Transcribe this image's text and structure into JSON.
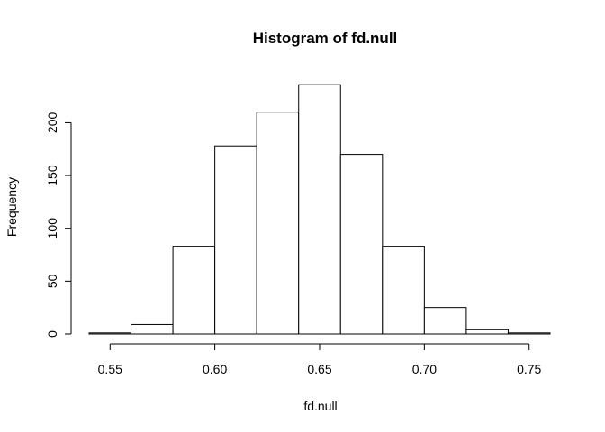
{
  "chart_data": {
    "type": "bar",
    "title": "Histogram of fd.null",
    "xlabel": "fd.null",
    "ylabel": "Frequency",
    "bin_edges": [
      0.54,
      0.56,
      0.58,
      0.6,
      0.62,
      0.64,
      0.66,
      0.68,
      0.7,
      0.72,
      0.74,
      0.76
    ],
    "values": [
      1,
      9,
      83,
      178,
      210,
      236,
      170,
      83,
      25,
      4,
      1
    ],
    "xticks": [
      0.55,
      0.6,
      0.65,
      0.7,
      0.75
    ],
    "xtick_labels": [
      "0.55",
      "0.60",
      "0.65",
      "0.70",
      "0.75"
    ],
    "yticks": [
      0,
      50,
      100,
      150,
      200
    ],
    "ytick_labels": [
      "0",
      "50",
      "100",
      "150",
      "200"
    ],
    "xlim": [
      0.54,
      0.76
    ],
    "ylim": [
      0,
      240
    ],
    "grid": false,
    "bar_fill": "#ffffff",
    "bar_stroke": "#000000"
  }
}
